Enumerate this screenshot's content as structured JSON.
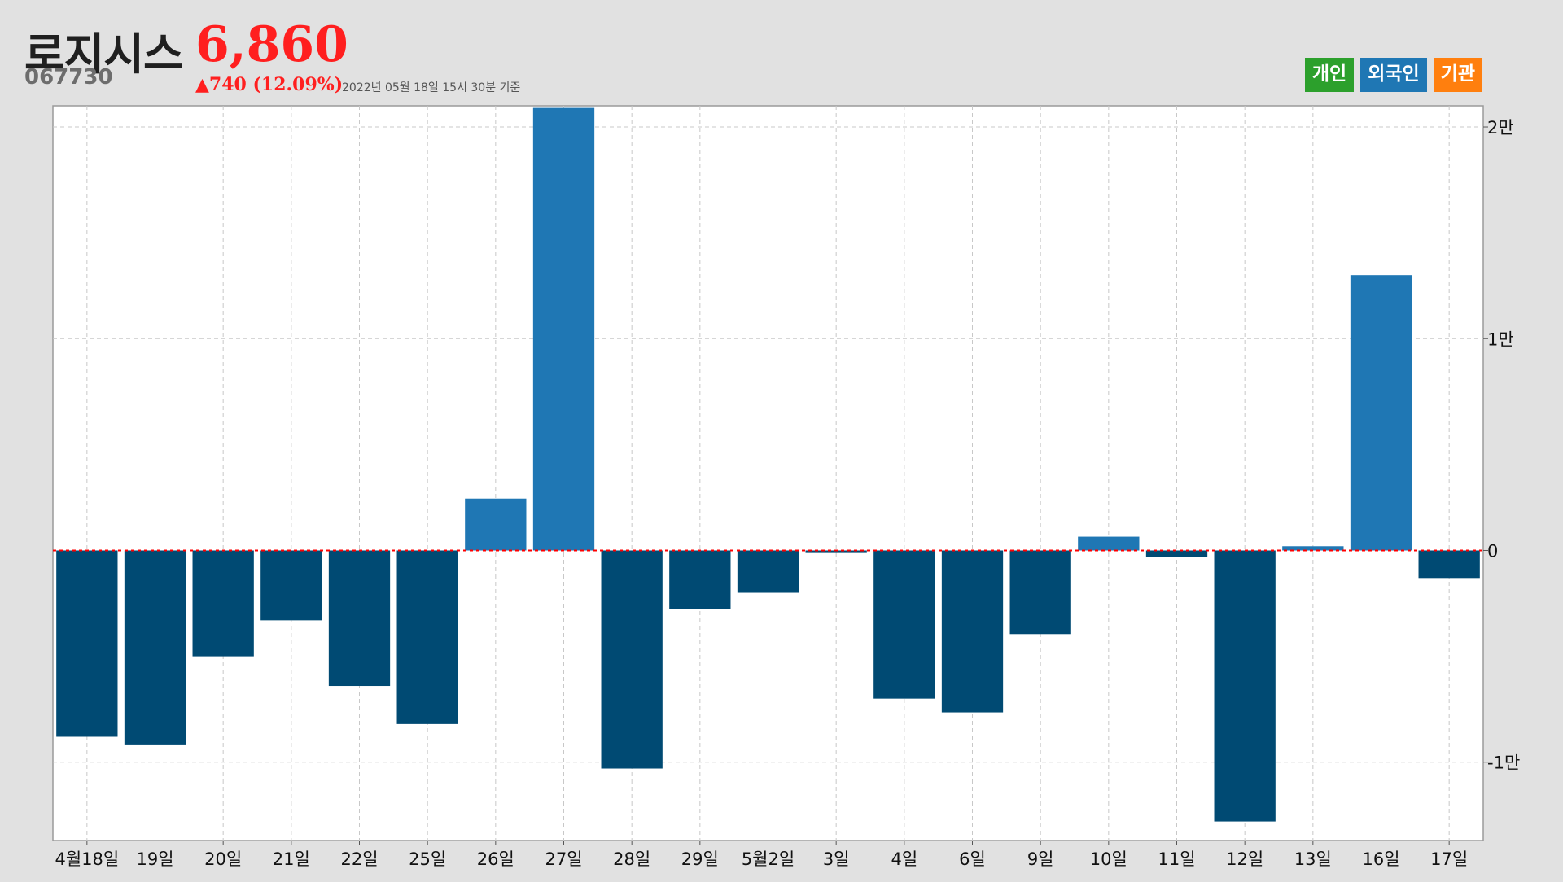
{
  "header": {
    "stock_name": "로지시스",
    "price": "6,860",
    "code": "067730",
    "change": "▲740 (12.09%)",
    "timestamp": "2022년 05월 18일 15시 30분 기준"
  },
  "legend": [
    {
      "label": "개인",
      "color": "#2ca02c"
    },
    {
      "label": "외국인",
      "color": "#1f77b4"
    },
    {
      "label": "기관",
      "color": "#ff7f0e"
    }
  ],
  "colors": {
    "positive_bar": "#1f77b4",
    "negative_bar": "#004a73",
    "zero_line": "#ff0000"
  },
  "chart_data": {
    "type": "bar",
    "series": [
      {
        "name": "외국인"
      }
    ],
    "categories": [
      "4월18일",
      "19일",
      "20일",
      "21일",
      "22일",
      "25일",
      "26일",
      "27일",
      "28일",
      "29일",
      "5월2일",
      "3일",
      "4일",
      "6일",
      "9일",
      "10일",
      "11일",
      "12일",
      "13일",
      "16일",
      "17일"
    ],
    "values": [
      -8800,
      -9200,
      -5000,
      -3300,
      -6400,
      -8200,
      2450,
      20900,
      -10300,
      -2750,
      -2000,
      -120,
      -7000,
      -7650,
      -3950,
      650,
      -320,
      -12800,
      200,
      13000,
      -1300
    ],
    "ylim": [
      -13700,
      21000
    ],
    "yticks": [
      20000,
      10000,
      0,
      -10000
    ],
    "ytick_labels": [
      "2만",
      "1만",
      "0",
      "-1만"
    ],
    "grid": true
  }
}
